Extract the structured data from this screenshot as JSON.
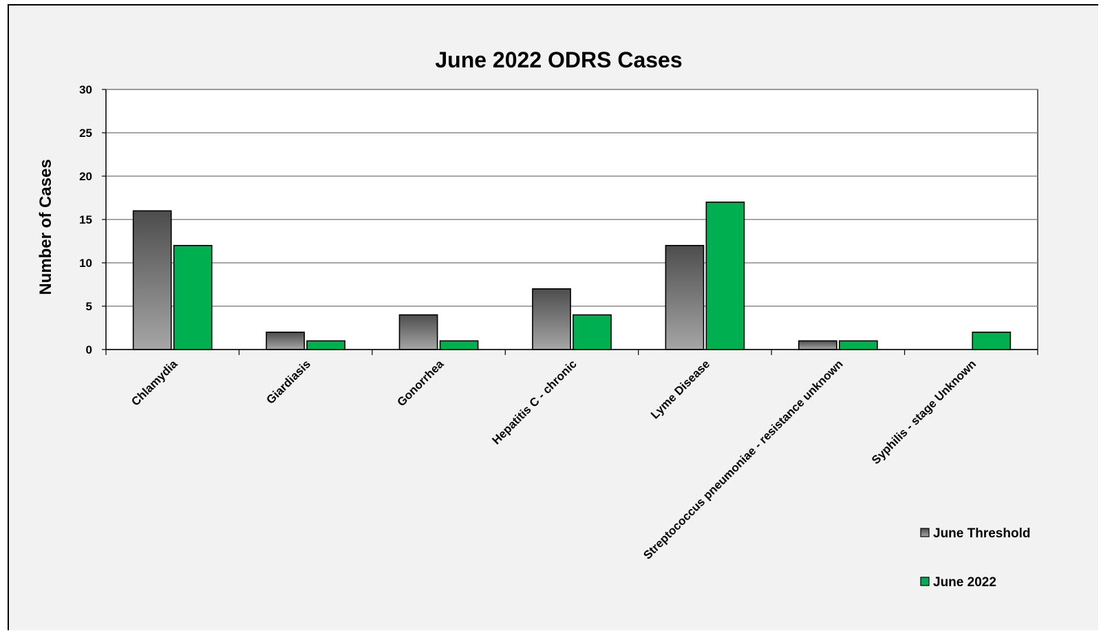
{
  "chart_data": {
    "type": "bar",
    "title": "June 2022 ODRS Cases",
    "xlabel": "",
    "ylabel": "Number of Cases",
    "ylim": [
      0,
      30
    ],
    "yticks": [
      0,
      5,
      10,
      15,
      20,
      25,
      30
    ],
    "grid": true,
    "legend_position": "bottom-right",
    "categories": [
      "Chlamydia",
      "Giardiasis",
      "Gonorrhea",
      "Hepatitis C - chronic",
      "Lyme Disease",
      "Streptococcus pneumoniae - resistance unknown",
      "Syphilis - stage Unknown"
    ],
    "series": [
      {
        "name": "June Threshold",
        "values": [
          16,
          2,
          4,
          7,
          12,
          1,
          0
        ],
        "color": "#7f7f7f"
      },
      {
        "name": "June 2022",
        "values": [
          12,
          1,
          1,
          4,
          17,
          1,
          2
        ],
        "color": "#00b050"
      }
    ]
  }
}
